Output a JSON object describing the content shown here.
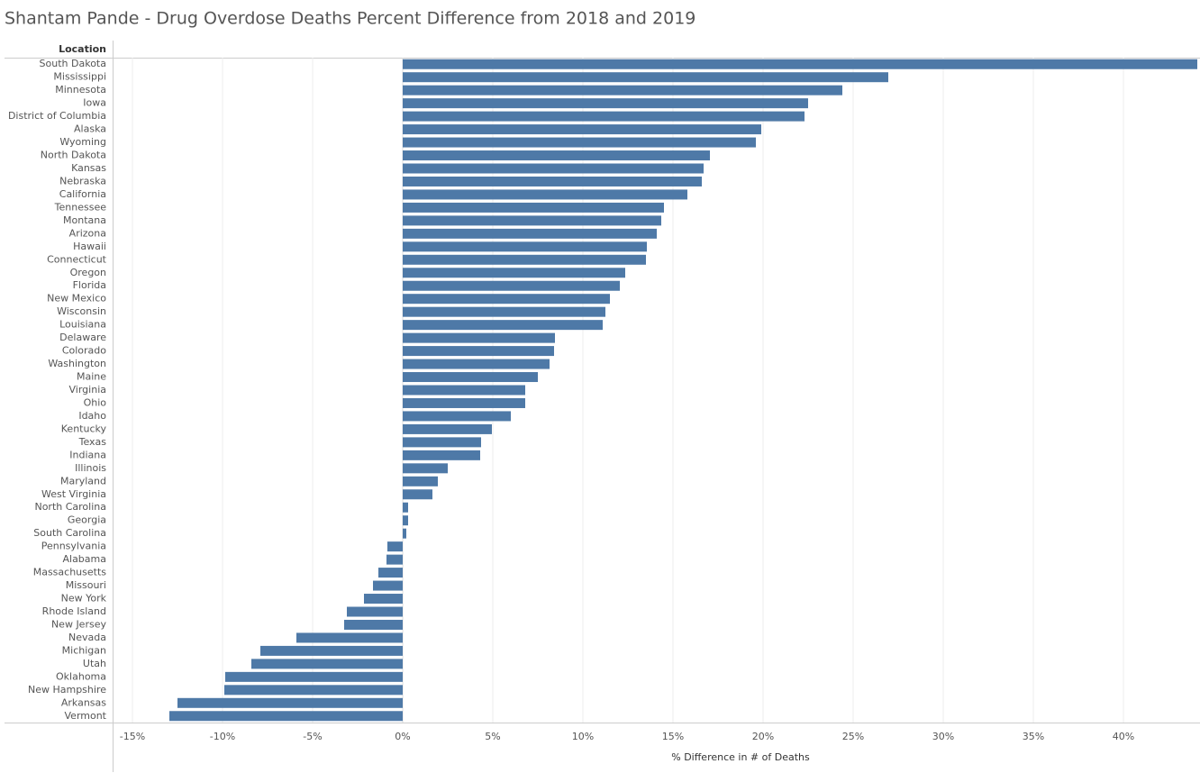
{
  "chart_data": {
    "type": "bar",
    "orientation": "horizontal",
    "title": "Shantam Pande - Drug Overdose Deaths Percent Difference from 2018 and 2019",
    "y_label": "Location",
    "x_label": "% Difference in # of Deaths",
    "categories": [
      "South Dakota",
      "Mississippi",
      "Minnesota",
      "Iowa",
      "District of Columbia",
      "Alaska",
      "Wyoming",
      "North Dakota",
      "Kansas",
      "Nebraska",
      "California",
      "Tennessee",
      "Montana",
      "Arizona",
      "Hawaii",
      "Connecticut",
      "Oregon",
      "Florida",
      "New Mexico",
      "Wisconsin",
      "Louisiana",
      "Delaware",
      "Colorado",
      "Washington",
      "Maine",
      "Virginia",
      "Ohio",
      "Idaho",
      "Kentucky",
      "Texas",
      "Indiana",
      "Illinois",
      "Maryland",
      "West Virginia",
      "North Carolina",
      "Georgia",
      "South Carolina",
      "Pennsylvania",
      "Alabama",
      "Massachusetts",
      "Missouri",
      "New York",
      "Rhode Island",
      "New Jersey",
      "Nevada",
      "Michigan",
      "Utah",
      "Oklahoma",
      "New Hampshire",
      "Arkansas",
      "Vermont"
    ],
    "values": [
      44.1,
      26.95,
      24.4,
      22.5,
      22.3,
      19.9,
      19.6,
      17.05,
      16.7,
      16.6,
      15.8,
      14.5,
      14.35,
      14.1,
      13.55,
      13.5,
      12.35,
      12.05,
      11.5,
      11.25,
      11.1,
      8.45,
      8.4,
      8.15,
      7.5,
      6.8,
      6.8,
      6.0,
      4.95,
      4.35,
      4.3,
      2.5,
      1.95,
      1.65,
      0.3,
      0.3,
      0.2,
      -0.85,
      -0.9,
      -1.35,
      -1.65,
      -2.15,
      -3.1,
      -3.25,
      -5.9,
      -7.9,
      -8.4,
      -9.85,
      -9.9,
      -12.5,
      -12.95
    ],
    "color": "#4e79a7",
    "xlim": [
      -16.1,
      44.15
    ],
    "xticks": [
      {
        "value": -15,
        "label": "-15%"
      },
      {
        "value": -10,
        "label": "-10%"
      },
      {
        "value": -5,
        "label": "-5%"
      },
      {
        "value": 0,
        "label": "0%"
      },
      {
        "value": 5,
        "label": "5%"
      },
      {
        "value": 10,
        "label": "10%"
      },
      {
        "value": 15,
        "label": "15%"
      },
      {
        "value": 20,
        "label": "20%"
      },
      {
        "value": 25,
        "label": "25%"
      },
      {
        "value": 30,
        "label": "30%"
      },
      {
        "value": 35,
        "label": "35%"
      },
      {
        "value": 40,
        "label": "40%"
      }
    ],
    "grid": true
  }
}
